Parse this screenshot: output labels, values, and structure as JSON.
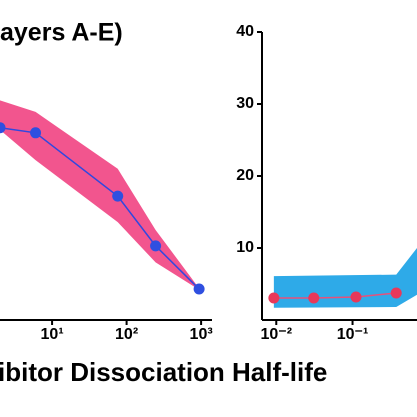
{
  "title": "ayers A-E)",
  "x_label": "ibitor Dissociation Half-life",
  "chart_data": [
    {
      "type": "line",
      "xscale": "log",
      "xlim": [
        2,
        1400
      ],
      "ylim": [
        0,
        40
      ],
      "xticks": [
        {
          "value": 10,
          "label": "10¹"
        },
        {
          "value": 100,
          "label": "10²"
        },
        {
          "value": 1000,
          "label": "10³"
        }
      ],
      "x": [
        2,
        6,
        76,
        245,
        940
      ],
      "series": [
        {
          "color": "#3048e0",
          "marker_color": "#2f4fe0",
          "values": [
            26.7,
            26,
            17.2,
            10.3,
            4.3
          ]
        }
      ],
      "band": {
        "color": "#f2558e",
        "x": [
          2,
          6,
          76,
          245,
          940
        ],
        "upper": [
          30.5,
          28.9,
          21,
          12.5,
          4.4
        ],
        "lower": [
          26.4,
          22.2,
          13.6,
          8,
          4.2
        ]
      }
    },
    {
      "type": "line",
      "xscale": "log",
      "xlim": [
        0.0065,
        0.7
      ],
      "ylim": [
        0,
        40
      ],
      "yticks": [
        10,
        20,
        30,
        40
      ],
      "xticks": [
        {
          "value": 0.01,
          "label": "10⁻²"
        },
        {
          "value": 0.1,
          "label": "10⁻¹"
        }
      ],
      "x": [
        0.0093,
        0.031,
        0.111,
        0.374
      ],
      "series": [
        {
          "color": "#e8507a",
          "marker_color": "#e8385a",
          "values": [
            3.06,
            3.06,
            3.2,
            3.75
          ]
        }
      ],
      "band": {
        "color": "#2eaae8",
        "x": [
          0.0093,
          0.374,
          0.7
        ],
        "upper": [
          6.1,
          6.3,
          10
        ],
        "lower": [
          1.7,
          1.8,
          3.5
        ]
      }
    }
  ]
}
